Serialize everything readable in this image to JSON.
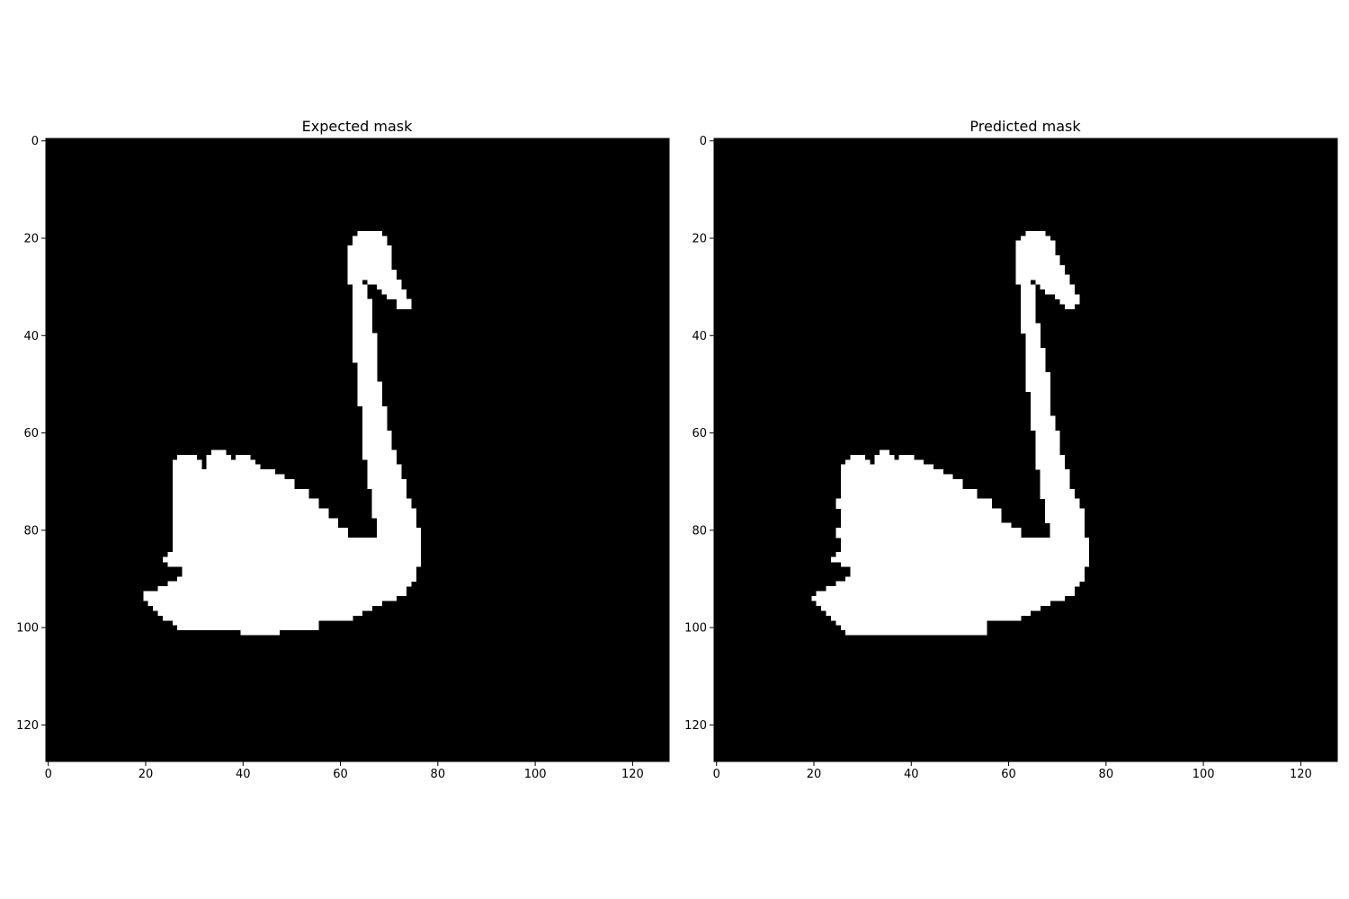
{
  "colors": {
    "background": "#000000",
    "foreground": "#ffffff",
    "axis": "#000000"
  },
  "chart_data": [
    {
      "type": "heatmap",
      "title": "Expected mask",
      "xlabel": "",
      "ylabel": "",
      "image_size": [
        128,
        128
      ],
      "xlim": [
        -0.5,
        127.5
      ],
      "ylim": [
        127.5,
        -0.5
      ],
      "x_ticks": [
        0,
        20,
        40,
        60,
        80,
        100,
        120
      ],
      "y_ticks": [
        0,
        20,
        40,
        60,
        80,
        100,
        120
      ],
      "values": "binary mask: 0 = background (black), 1 = swan (white)",
      "mask_row_spans": [
        [
          19,
          [
            [
              64,
              68
            ]
          ]
        ],
        [
          20,
          [
            [
              63,
              69
            ]
          ]
        ],
        [
          22,
          [
            [
              62,
              70
            ]
          ]
        ],
        [
          25,
          [
            [
              62,
              70
            ]
          ]
        ],
        [
          27,
          [
            [
              62,
              71
            ]
          ]
        ],
        [
          29,
          [
            [
              62,
              64
            ],
            [
              66,
              72
            ]
          ]
        ],
        [
          30,
          [
            [
              63,
              65
            ],
            [
              68,
              72
            ]
          ]
        ],
        [
          31,
          [
            [
              63,
              65
            ],
            [
              69,
              73
            ]
          ]
        ],
        [
          32,
          [
            [
              63,
              65
            ],
            [
              70,
              73
            ]
          ]
        ],
        [
          33,
          [
            [
              63,
              66
            ],
            [
              72,
              74
            ]
          ]
        ],
        [
          35,
          [
            [
              63,
              66
            ]
          ]
        ],
        [
          40,
          [
            [
              63,
              67
            ]
          ]
        ],
        [
          46,
          [
            [
              64,
              67
            ]
          ]
        ],
        [
          50,
          [
            [
              64,
              68
            ]
          ]
        ],
        [
          55,
          [
            [
              65,
              69
            ]
          ]
        ],
        [
          60,
          [
            [
              65,
              70
            ]
          ]
        ],
        [
          63,
          [
            [
              65,
              70
            ]
          ]
        ],
        [
          64,
          [
            [
              34,
              36
            ],
            [
              65,
              71
            ]
          ]
        ],
        [
          65,
          [
            [
              27,
              30
            ],
            [
              33,
              37
            ],
            [
              39,
              41
            ],
            [
              65,
              71
            ]
          ]
        ],
        [
          66,
          [
            [
              26,
              31
            ],
            [
              33,
              38
            ],
            [
              39,
              42
            ],
            [
              66,
              71
            ]
          ]
        ],
        [
          67,
          [
            [
              26,
              31
            ],
            [
              33,
              43
            ],
            [
              66,
              72
            ]
          ]
        ],
        [
          68,
          [
            [
              26,
              46
            ],
            [
              66,
              72
            ]
          ]
        ],
        [
          69,
          [
            [
              26,
              48
            ],
            [
              66,
              72
            ]
          ]
        ],
        [
          70,
          [
            [
              26,
              50
            ],
            [
              66,
              73
            ]
          ]
        ],
        [
          72,
          [
            [
              26,
              53
            ],
            [
              67,
              73
            ]
          ]
        ],
        [
          74,
          [
            [
              26,
              55
            ],
            [
              67,
              74
            ]
          ]
        ],
        [
          76,
          [
            [
              26,
              57
            ],
            [
              67,
              75
            ]
          ]
        ],
        [
          78,
          [
            [
              26,
              59
            ],
            [
              68,
              75
            ]
          ]
        ],
        [
          80,
          [
            [
              26,
              61
            ],
            [
              68,
              76
            ]
          ]
        ],
        [
          82,
          [
            [
              26,
              76
            ]
          ]
        ],
        [
          85,
          [
            [
              25,
              76
            ]
          ]
        ],
        [
          86,
          [
            [
              24,
              76
            ]
          ]
        ],
        [
          87,
          [
            [
              25,
              76
            ]
          ]
        ],
        [
          88,
          [
            [
              28,
              75
            ]
          ]
        ],
        [
          89,
          [
            [
              28,
              75
            ]
          ]
        ],
        [
          90,
          [
            [
              27,
              75
            ]
          ]
        ],
        [
          91,
          [
            [
              25,
              74
            ]
          ]
        ],
        [
          92,
          [
            [
              23,
              73
            ]
          ]
        ],
        [
          93,
          [
            [
              20,
              73
            ]
          ]
        ],
        [
          94,
          [
            [
              20,
              71
            ]
          ]
        ],
        [
          95,
          [
            [
              21,
              68
            ]
          ]
        ],
        [
          96,
          [
            [
              22,
              66
            ]
          ]
        ],
        [
          97,
          [
            [
              23,
              64
            ]
          ]
        ],
        [
          98,
          [
            [
              24,
              62
            ]
          ]
        ],
        [
          99,
          [
            [
              26,
              55
            ]
          ]
        ],
        [
          100,
          [
            [
              27,
              55
            ]
          ]
        ],
        [
          101,
          [
            [
              40,
              47
            ]
          ]
        ]
      ]
    },
    {
      "type": "heatmap",
      "title": "Predicted mask",
      "xlabel": "",
      "ylabel": "",
      "image_size": [
        128,
        128
      ],
      "xlim": [
        -0.5,
        127.5
      ],
      "ylim": [
        127.5,
        -0.5
      ],
      "x_ticks": [
        0,
        20,
        40,
        60,
        80,
        100,
        120
      ],
      "y_ticks": [
        0,
        20,
        40,
        60,
        80,
        100,
        120
      ],
      "values": "binary mask: 0 = background (black), 1 = swan (white)",
      "mask_row_spans": [
        [
          19,
          [
            [
              64,
              67
            ]
          ]
        ],
        [
          20,
          [
            [
              63,
              68
            ]
          ]
        ],
        [
          21,
          [
            [
              62,
              69
            ]
          ]
        ],
        [
          24,
          [
            [
              62,
              70
            ]
          ]
        ],
        [
          26,
          [
            [
              62,
              71
            ]
          ]
        ],
        [
          28,
          [
            [
              62,
              72
            ]
          ]
        ],
        [
          29,
          [
            [
              62,
              64
            ],
            [
              66,
              72
            ]
          ]
        ],
        [
          30,
          [
            [
              63,
              65
            ],
            [
              67,
              73
            ]
          ]
        ],
        [
          31,
          [
            [
              63,
              65
            ],
            [
              68,
              73
            ]
          ]
        ],
        [
          32,
          [
            [
              63,
              65
            ],
            [
              70,
              74
            ]
          ]
        ],
        [
          33,
          [
            [
              63,
              65
            ],
            [
              71,
              74
            ]
          ]
        ],
        [
          34,
          [
            [
              63,
              65
            ],
            [
              72,
              73
            ]
          ]
        ],
        [
          35,
          [
            [
              63,
              65
            ]
          ]
        ],
        [
          38,
          [
            [
              63,
              66
            ]
          ]
        ],
        [
          40,
          [
            [
              64,
              66
            ]
          ]
        ],
        [
          43,
          [
            [
              64,
              67
            ]
          ]
        ],
        [
          48,
          [
            [
              64,
              68
            ]
          ]
        ],
        [
          52,
          [
            [
              65,
              68
            ]
          ]
        ],
        [
          57,
          [
            [
              65,
              69
            ]
          ]
        ],
        [
          60,
          [
            [
              66,
              70
            ]
          ]
        ],
        [
          64,
          [
            [
              34,
              35
            ],
            [
              66,
              70
            ]
          ]
        ],
        [
          65,
          [
            [
              28,
              30
            ],
            [
              33,
              36
            ],
            [
              38,
              40
            ],
            [
              66,
              71
            ]
          ]
        ],
        [
          66,
          [
            [
              27,
              31
            ],
            [
              33,
              38
            ],
            [
              38,
              42
            ],
            [
              66,
              71
            ]
          ]
        ],
        [
          67,
          [
            [
              26,
              32
            ],
            [
              33,
              44
            ],
            [
              66,
              71
            ]
          ]
        ],
        [
          68,
          [
            [
              26,
              46
            ],
            [
              67,
              72
            ]
          ]
        ],
        [
          69,
          [
            [
              26,
              48
            ],
            [
              67,
              72
            ]
          ]
        ],
        [
          70,
          [
            [
              26,
              50
            ],
            [
              67,
              72
            ]
          ]
        ],
        [
          72,
          [
            [
              26,
              53
            ],
            [
              67,
              73
            ]
          ]
        ],
        [
          74,
          [
            [
              25,
              56
            ],
            [
              68,
              74
            ]
          ]
        ],
        [
          76,
          [
            [
              26,
              58
            ],
            [
              68,
              75
            ]
          ]
        ],
        [
          79,
          [
            [
              26,
              60
            ],
            [
              69,
              75
            ]
          ]
        ],
        [
          80,
          [
            [
              25,
              62
            ],
            [
              69,
              75
            ]
          ]
        ],
        [
          82,
          [
            [
              26,
              76
            ]
          ]
        ],
        [
          84,
          [
            [
              26,
              76
            ]
          ]
        ],
        [
          85,
          [
            [
              25,
              76
            ]
          ]
        ],
        [
          86,
          [
            [
              24,
              76
            ]
          ]
        ],
        [
          87,
          [
            [
              26,
              76
            ]
          ]
        ],
        [
          88,
          [
            [
              28,
              75
            ]
          ]
        ],
        [
          89,
          [
            [
              28,
              75
            ]
          ]
        ],
        [
          90,
          [
            [
              27,
              75
            ]
          ]
        ],
        [
          91,
          [
            [
              25,
              74
            ]
          ]
        ],
        [
          92,
          [
            [
              23,
              73
            ]
          ]
        ],
        [
          93,
          [
            [
              21,
              73
            ]
          ]
        ],
        [
          94,
          [
            [
              20,
              71
            ]
          ]
        ],
        [
          95,
          [
            [
              21,
              68
            ]
          ]
        ],
        [
          96,
          [
            [
              22,
              66
            ]
          ]
        ],
        [
          97,
          [
            [
              23,
              64
            ]
          ]
        ],
        [
          98,
          [
            [
              24,
              62
            ]
          ]
        ],
        [
          99,
          [
            [
              25,
              55
            ]
          ]
        ],
        [
          100,
          [
            [
              26,
              55
            ]
          ]
        ],
        [
          101,
          [
            [
              27,
              55
            ]
          ]
        ]
      ]
    }
  ]
}
